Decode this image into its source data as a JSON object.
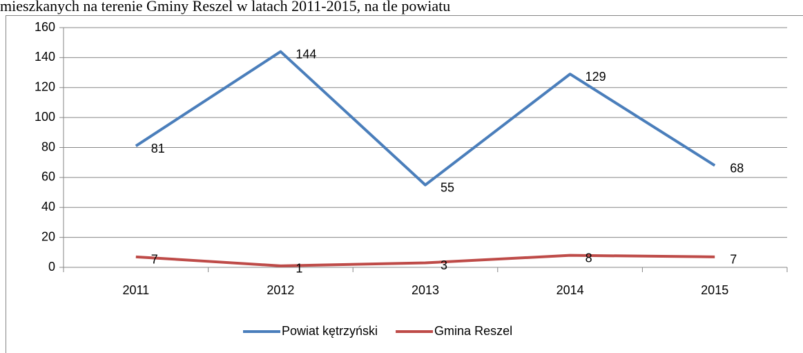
{
  "chart_data": {
    "type": "line",
    "title": "mieszkanych na terenie Gminy Reszel w latach 2011-2015, na tle powiatu",
    "categories": [
      "2011",
      "2012",
      "2013",
      "2014",
      "2015"
    ],
    "series": [
      {
        "name": "Powiat kętrzyński",
        "color": "#4a7ebb",
        "values": [
          81,
          144,
          55,
          129,
          68
        ]
      },
      {
        "name": "Gmina Reszel",
        "color": "#be4b48",
        "values": [
          7,
          1,
          3,
          8,
          7
        ]
      }
    ],
    "ylim": [
      0,
      160
    ],
    "yticks": [
      0,
      20,
      40,
      60,
      80,
      100,
      120,
      140,
      160
    ],
    "grid": true,
    "legend": "bottom"
  }
}
